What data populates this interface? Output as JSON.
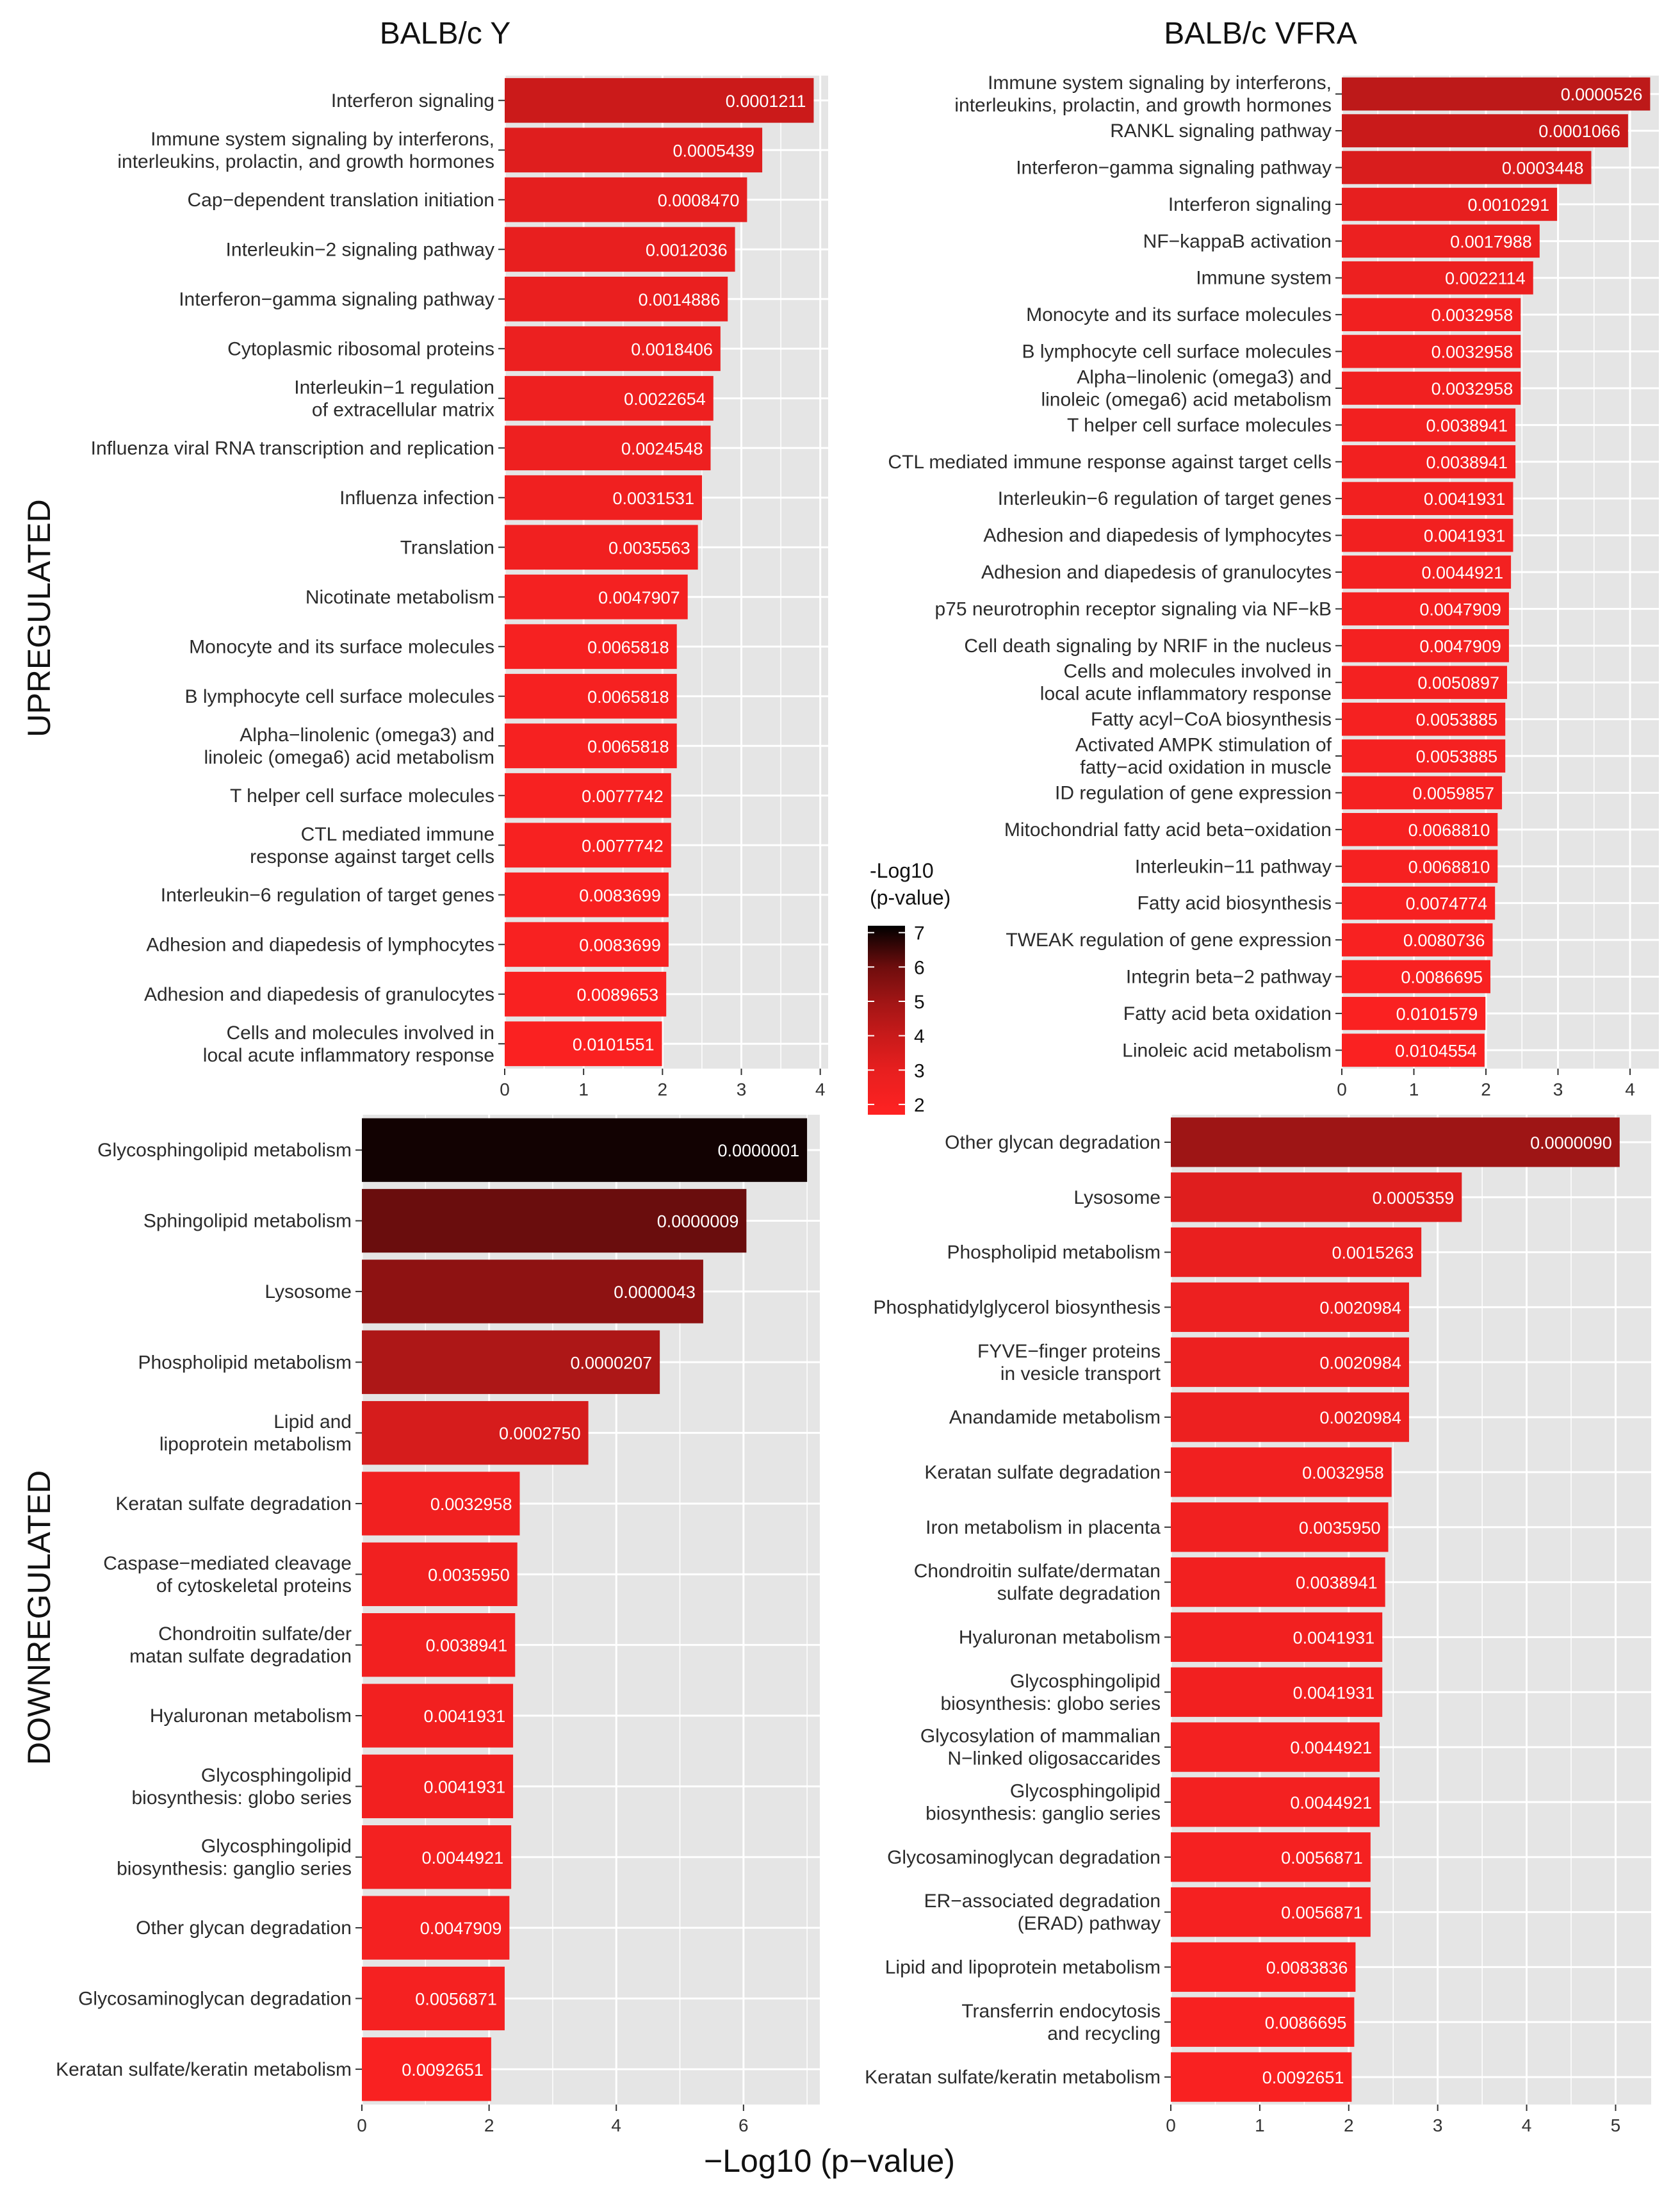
{
  "titles": {
    "left": "BALB/c Y",
    "right": "BALB/c VFRA",
    "up": "UPREGULATED",
    "down": "DOWNREGULATED",
    "xaxis": "−Log10 (p−value)"
  },
  "legend": {
    "title": [
      "-Log10",
      "(p-value)"
    ],
    "ticks": [
      2,
      3,
      4,
      5,
      6,
      7
    ],
    "range": [
      1.7,
      7.2
    ],
    "colors": [
      "#ff2222",
      "#e71f1f",
      "#c81a1a",
      "#a01515",
      "#6e0d0d",
      "#000000"
    ]
  },
  "colors": {
    "panel_bg": "#e5e5e5",
    "grid": "#ffffff",
    "low": "#ff2222",
    "high": "#000000"
  },
  "chart_data": [
    {
      "type": "bar",
      "orientation": "horizontal",
      "panel": "BALB/c Y upregulated",
      "xlim": [
        0,
        4.1
      ],
      "xticks": [
        0,
        1,
        2,
        3,
        4
      ],
      "categories": [
        "Interferon signaling",
        "Immune system signaling by interferons,\ninterleukins, prolactin, and growth hormones",
        "Cap−dependent translation initiation",
        "Interleukin−2 signaling pathway",
        "Interferon−gamma signaling pathway",
        "Cytoplasmic ribosomal proteins",
        "Interleukin−1 regulation\nof extracellular matrix",
        "Influenza viral RNA transcription and replication",
        "Influenza infection",
        "Translation",
        "Nicotinate metabolism",
        "Monocyte and its surface molecules",
        "B lymphocyte cell surface molecules",
        "Alpha−linolenic (omega3) and\nlinoleic (omega6) acid metabolism",
        "T helper cell surface molecules",
        "CTL mediated immune\nresponse against target cells",
        "Interleukin−6 regulation of target genes",
        "Adhesion and diapedesis of lymphocytes",
        "Adhesion and diapedesis of granulocytes",
        "Cells and molecules involved in\nlocal acute inflammatory response"
      ],
      "p_labels": [
        "0.0001211",
        "0.0005439",
        "0.0008470",
        "0.0012036",
        "0.0014886",
        "0.0018406",
        "0.0022654",
        "0.0024548",
        "0.0031531",
        "0.0035563",
        "0.0047907",
        "0.0065818",
        "0.0065818",
        "0.0065818",
        "0.0077742",
        "0.0077742",
        "0.0083699",
        "0.0083699",
        "0.0089653",
        "0.0101551"
      ]
    },
    {
      "type": "bar",
      "orientation": "horizontal",
      "panel": "BALB/c VFRA upregulated",
      "xlim": [
        0,
        4.4
      ],
      "xticks": [
        0,
        1,
        2,
        3,
        4
      ],
      "categories": [
        "Immune system signaling by interferons,\ninterleukins, prolactin, and growth hormones",
        "RANKL signaling pathway",
        "Interferon−gamma signaling pathway",
        "Interferon signaling",
        "NF−kappaB activation",
        "Immune system",
        "Monocyte and its surface molecules",
        "B lymphocyte cell surface molecules",
        "Alpha−linolenic (omega3) and\nlinoleic (omega6) acid metabolism",
        "T helper cell surface molecules",
        "CTL mediated immune response against target cells",
        "Interleukin−6 regulation of target genes",
        "Adhesion and diapedesis of lymphocytes",
        "Adhesion and diapedesis of granulocytes",
        "p75 neurotrophin receptor signaling via NF−kB",
        "Cell death signaling by NRIF in the nucleus",
        "Cells and molecules involved in\nlocal acute inflammatory response",
        "Fatty acyl−CoA biosynthesis",
        "Activated AMPK stimulation of\nfatty−acid oxidation in muscle",
        "ID regulation of gene expression",
        "Mitochondrial fatty acid beta−oxidation",
        "Interleukin−11 pathway",
        "Fatty acid biosynthesis",
        "TWEAK regulation of gene expression",
        "Integrin beta−2 pathway",
        "Fatty acid beta oxidation",
        "Linoleic acid metabolism"
      ],
      "p_labels": [
        "0.0000526",
        "0.0001066",
        "0.0003448",
        "0.0010291",
        "0.0017988",
        "0.0022114",
        "0.0032958",
        "0.0032958",
        "0.0032958",
        "0.0038941",
        "0.0038941",
        "0.0041931",
        "0.0041931",
        "0.0044921",
        "0.0047909",
        "0.0047909",
        "0.0050897",
        "0.0053885",
        "0.0053885",
        "0.0059857",
        "0.0068810",
        "0.0068810",
        "0.0074774",
        "0.0080736",
        "0.0086695",
        "0.0101579",
        "0.0104554"
      ]
    },
    {
      "type": "bar",
      "orientation": "horizontal",
      "panel": "BALB/c Y downregulated",
      "xlim": [
        0,
        7.2
      ],
      "xticks": [
        0,
        2,
        4,
        6
      ],
      "categories": [
        "Glycosphingolipid metabolism",
        "Sphingolipid metabolism",
        "Lysosome",
        "Phospholipid metabolism",
        "Lipid and\nlipoprotein metabolism",
        "Keratan sulfate degradation",
        "Caspase−mediated cleavage\nof cytoskeletal proteins",
        "Chondroitin sulfate/der\nmatan sulfate degradation",
        "Hyaluronan metabolism",
        "Glycosphingolipid\nbiosynthesis: globo series",
        "Glycosphingolipid\nbiosynthesis: ganglio series",
        "Other glycan degradation",
        "Glycosaminoglycan degradation",
        "Keratan sulfate/keratin metabolism"
      ],
      "p_labels": [
        "0.0000001",
        "0.0000009",
        "0.0000043",
        "0.0000207",
        "0.0002750",
        "0.0032958",
        "0.0035950",
        "0.0038941",
        "0.0041931",
        "0.0041931",
        "0.0044921",
        "0.0047909",
        "0.0056871",
        "0.0092651"
      ]
    },
    {
      "type": "bar",
      "orientation": "horizontal",
      "panel": "BALB/c VFRA downregulated",
      "xlim": [
        0,
        5.4
      ],
      "xticks": [
        0,
        1,
        2,
        3,
        4,
        5
      ],
      "categories": [
        "Other glycan degradation",
        "Lysosome",
        "Phospholipid metabolism",
        "Phosphatidylglycerol biosynthesis",
        "FYVE−finger proteins\nin vesicle transport",
        "Anandamide metabolism",
        "Keratan sulfate degradation",
        "Iron metabolism in placenta",
        "Chondroitin sulfate/dermatan\nsulfate degradation",
        "Hyaluronan metabolism",
        "Glycosphingolipid\nbiosynthesis: globo series",
        "Glycosylation of mammalian\nN−linked oligosaccarides",
        "Glycosphingolipid\nbiosynthesis: ganglio series",
        "Glycosaminoglycan degradation",
        "ER−associated degradation\n(ERAD) pathway",
        "Lipid and lipoprotein metabolism",
        "Transferrin endocytosis\nand recycling",
        "Keratan sulfate/keratin metabolism"
      ],
      "p_labels": [
        "0.0000090",
        "0.0005359",
        "0.0015263",
        "0.0020984",
        "0.0020984",
        "0.0020984",
        "0.0032958",
        "0.0035950",
        "0.0038941",
        "0.0041931",
        "0.0041931",
        "0.0044921",
        "0.0044921",
        "0.0056871",
        "0.0056871",
        "0.0083836",
        "0.0086695",
        "0.0092651"
      ]
    }
  ]
}
